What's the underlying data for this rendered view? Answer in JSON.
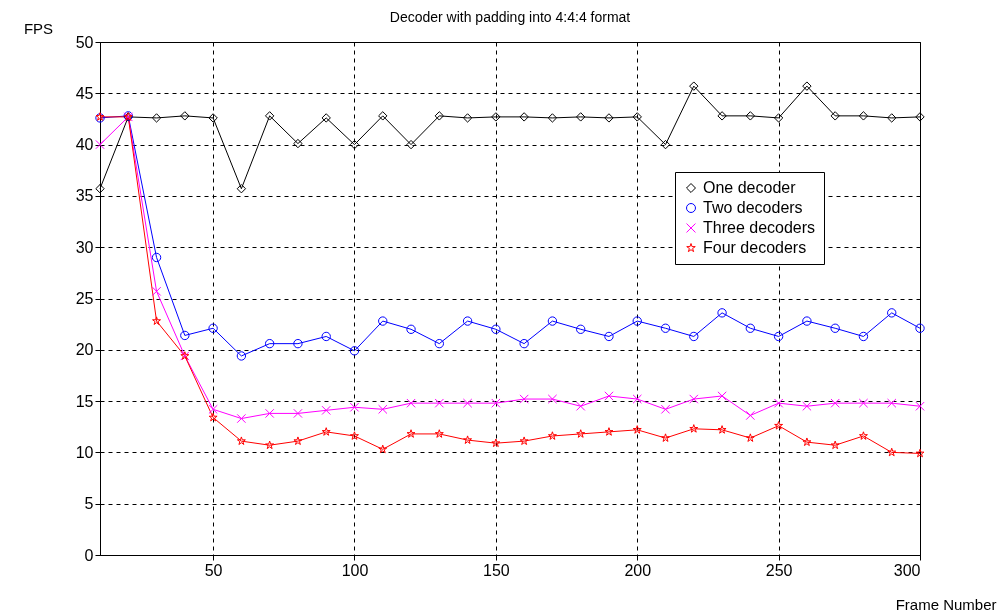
{
  "chart_data": {
    "type": "line",
    "title": "Decoder with padding into 4:4:4 format",
    "xlabel": "Frame Number",
    "ylabel": "FPS",
    "x": [
      10,
      20,
      30,
      40,
      50,
      60,
      70,
      80,
      90,
      100,
      110,
      120,
      130,
      140,
      150,
      160,
      170,
      180,
      190,
      200,
      210,
      220,
      230,
      240,
      250,
      260,
      270,
      280,
      290,
      300
    ],
    "series": [
      {
        "name": "One decoder",
        "color": "#000000",
        "marker": "diamond",
        "values": [
          35.7,
          42.7,
          42.6,
          42.8,
          42.6,
          35.7,
          42.8,
          40.1,
          42.6,
          40,
          42.8,
          40,
          42.8,
          42.6,
          42.7,
          42.7,
          42.6,
          42.7,
          42.6,
          42.7,
          40,
          45.7,
          42.8,
          42.8,
          42.6,
          45.7,
          42.8,
          42.8,
          42.6,
          42.7
        ]
      },
      {
        "name": "Two decoders",
        "color": "#0000ff",
        "marker": "circle",
        "values": [
          42.6,
          42.8,
          29,
          21.4,
          22.1,
          19.4,
          20.6,
          20.6,
          21.3,
          19.9,
          22.8,
          22,
          20.6,
          22.8,
          22,
          20.6,
          22.8,
          22,
          21.3,
          22.8,
          22.1,
          21.3,
          23.6,
          22.1,
          21.3,
          22.8,
          22.1,
          21.3,
          23.6,
          22.1
        ]
      },
      {
        "name": "Three decoders",
        "color": "#ff00ff",
        "marker": "cross",
        "values": [
          40,
          42.7,
          25.7,
          19.4,
          14.2,
          13.3,
          13.8,
          13.8,
          14.1,
          14.4,
          14.2,
          14.8,
          14.8,
          14.8,
          14.8,
          15.2,
          15.2,
          14.5,
          15.5,
          15.2,
          14.2,
          15.2,
          15.5,
          13.6,
          14.8,
          14.5,
          14.8,
          14.8,
          14.8,
          14.5
        ]
      },
      {
        "name": "Four decoders",
        "color": "#ff0000",
        "marker": "star",
        "values": [
          42.7,
          42.7,
          22.8,
          19.4,
          13.4,
          11.1,
          10.7,
          11.1,
          12,
          11.6,
          10.3,
          11.8,
          11.8,
          11.2,
          10.9,
          11.1,
          11.6,
          11.8,
          12,
          12.2,
          11.4,
          12.3,
          12.2,
          11.4,
          12.6,
          11,
          10.7,
          11.6,
          10,
          9.9
        ]
      }
    ],
    "xlim": [
      10,
      300
    ],
    "xticks": [
      50,
      100,
      150,
      200,
      250,
      300
    ],
    "ylim": [
      0,
      50
    ],
    "yticks": [
      0,
      5,
      10,
      15,
      20,
      25,
      30,
      35,
      40,
      45,
      50
    ],
    "grid": true,
    "legend": "right",
    "line_style": "solid"
  }
}
